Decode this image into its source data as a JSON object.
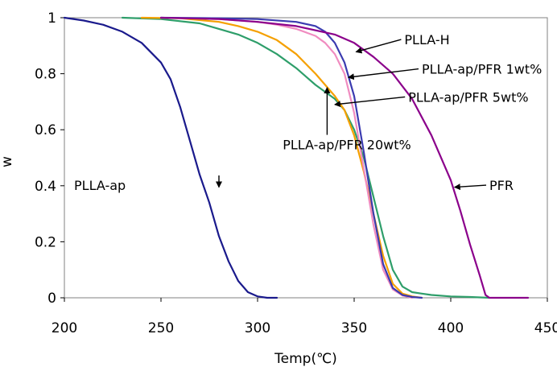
{
  "chart_data": {
    "type": "line",
    "title": "",
    "xlabel": "Temp(℃)",
    "ylabel": "w",
    "xlim": [
      200,
      450
    ],
    "ylim": [
      0,
      1
    ],
    "x_ticks": [
      "200",
      "250",
      "300",
      "350",
      "400",
      "450"
    ],
    "y_ticks": [
      "0",
      "0.2",
      "0.4",
      "0.6",
      "0.8",
      "1"
    ],
    "grid": false,
    "legend": "none",
    "series": [
      {
        "name": "PLLA-ap",
        "color": "#1a1a8c",
        "x": [
          200,
          210,
          220,
          230,
          240,
          250,
          255,
          260,
          265,
          270,
          275,
          280,
          285,
          290,
          295,
          300,
          305,
          310
        ],
        "y": [
          1.0,
          0.99,
          0.975,
          0.95,
          0.91,
          0.84,
          0.78,
          0.68,
          0.56,
          0.44,
          0.34,
          0.22,
          0.13,
          0.06,
          0.02,
          0.005,
          0.0,
          0.0
        ]
      },
      {
        "name": "PLLA-ap/PFR 20wt%",
        "color": "#2e9e6a",
        "x": [
          230,
          250,
          270,
          280,
          290,
          300,
          310,
          320,
          330,
          340,
          345,
          350,
          355,
          360,
          365,
          370,
          375,
          380,
          385,
          390,
          400,
          410,
          420
        ],
        "y": [
          1.0,
          0.995,
          0.98,
          0.96,
          0.94,
          0.91,
          0.87,
          0.82,
          0.76,
          0.71,
          0.67,
          0.6,
          0.5,
          0.36,
          0.22,
          0.1,
          0.04,
          0.02,
          0.015,
          0.01,
          0.005,
          0.003,
          0.0
        ]
      },
      {
        "name": "PLLA-ap/PFR 5wt%",
        "color": "#f5a000",
        "x": [
          240,
          260,
          280,
          290,
          300,
          310,
          320,
          330,
          340,
          345,
          350,
          355,
          360,
          365,
          370,
          375,
          380,
          385
        ],
        "y": [
          1.0,
          0.998,
          0.985,
          0.97,
          0.95,
          0.92,
          0.87,
          0.8,
          0.72,
          0.67,
          0.58,
          0.45,
          0.3,
          0.15,
          0.05,
          0.015,
          0.005,
          0.0
        ]
      },
      {
        "name": "PLLA-ap/PFR 1wt%",
        "color": "#f08cc0",
        "x": [
          250,
          280,
          300,
          310,
          320,
          330,
          335,
          340,
          345,
          350,
          355,
          360,
          365,
          370,
          375,
          380
        ],
        "y": [
          1.0,
          0.995,
          0.985,
          0.975,
          0.96,
          0.935,
          0.91,
          0.87,
          0.8,
          0.66,
          0.46,
          0.26,
          0.1,
          0.03,
          0.008,
          0.0
        ]
      },
      {
        "name": "PLLA-H",
        "color": "#3b3bb0",
        "x": [
          250,
          280,
          300,
          320,
          330,
          335,
          340,
          345,
          350,
          355,
          360,
          365,
          370,
          375,
          380,
          385
        ],
        "y": [
          1.0,
          0.998,
          0.995,
          0.985,
          0.97,
          0.95,
          0.91,
          0.84,
          0.72,
          0.52,
          0.3,
          0.12,
          0.035,
          0.01,
          0.003,
          0.0
        ]
      },
      {
        "name": "PFR",
        "color": "#8b008b",
        "x": [
          250,
          280,
          300,
          320,
          340,
          350,
          360,
          370,
          380,
          390,
          400,
          405,
          410,
          415,
          418,
          420,
          430,
          440
        ],
        "y": [
          1.0,
          0.995,
          0.985,
          0.97,
          0.94,
          0.91,
          0.86,
          0.8,
          0.71,
          0.58,
          0.42,
          0.31,
          0.19,
          0.08,
          0.01,
          0.0,
          0.0,
          0.0
        ]
      }
    ],
    "annotations": [
      {
        "text": "PLLA-H",
        "x": 376,
        "y": 0.905,
        "arrow_to": [
          351,
          0.878
        ]
      },
      {
        "text": "PLLA-ap/PFR 1wt%",
        "x": 385,
        "y": 0.8,
        "arrow_to": [
          347,
          0.787
        ]
      },
      {
        "text": "PLLA-ap/PFR 5wt%",
        "x": 378,
        "y": 0.7,
        "arrow_to": [
          340,
          0.69
        ]
      },
      {
        "text": "PLLA-ap/PFR 20wt%",
        "x": 313,
        "y": 0.53,
        "arrow_to": [
          336,
          0.75
        ]
      },
      {
        "text": "PLLA-ap",
        "x": 205,
        "y": 0.385,
        "arrow_to": [
          280,
          0.395
        ]
      },
      {
        "text": "PFR",
        "x": 420,
        "y": 0.385,
        "arrow_to": [
          402,
          0.395
        ]
      }
    ]
  }
}
